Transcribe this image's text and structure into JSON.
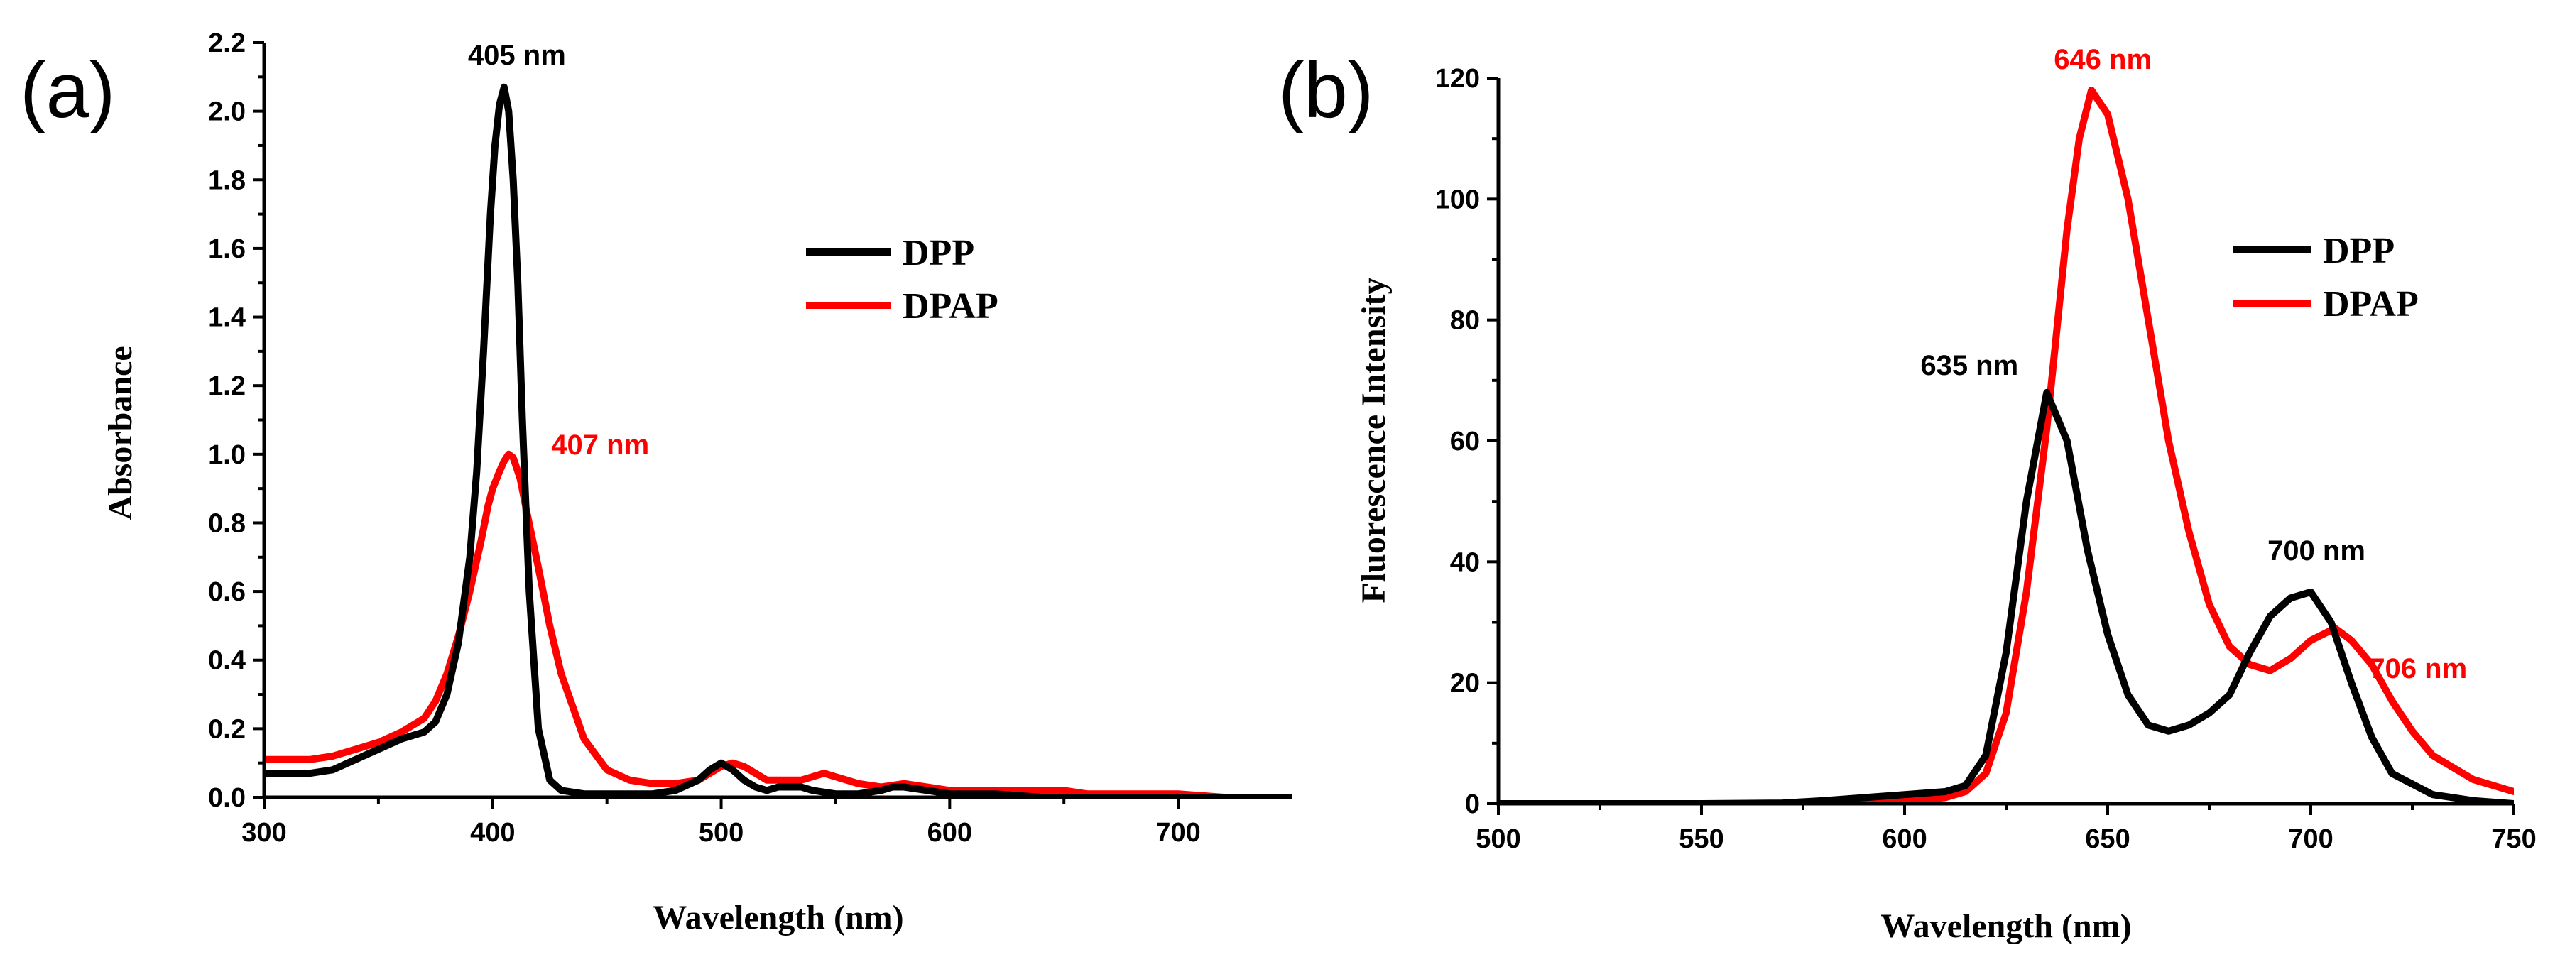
{
  "chart_data": [
    {
      "panel": "(a)",
      "type": "line",
      "xlabel": "Wavelength (nm)",
      "ylabel": "Absorbance",
      "xlim": [
        300,
        750
      ],
      "ylim": [
        0,
        2.2
      ],
      "xticks": [
        300,
        400,
        500,
        600,
        700
      ],
      "yticks": [
        0.0,
        0.2,
        0.4,
        0.6,
        0.8,
        1.0,
        1.2,
        1.4,
        1.6,
        1.8,
        2.0,
        2.2
      ],
      "ytick_labels": [
        "0.0",
        "0.2",
        "0.4",
        "0.6",
        "0.8",
        "1.0",
        "1.2",
        "1.4",
        "1.6",
        "1.8",
        "2.0",
        "2.2"
      ],
      "grid": false,
      "legend_position": "upper-right",
      "colors": {
        "DPP": "#000000",
        "DPAP": "#ff0000"
      },
      "series": [
        {
          "name": "DPAP",
          "x": [
            300,
            310,
            320,
            330,
            340,
            350,
            360,
            370,
            375,
            380,
            385,
            390,
            395,
            398,
            400,
            403,
            405,
            407,
            409,
            412,
            415,
            420,
            425,
            430,
            440,
            450,
            460,
            470,
            480,
            490,
            495,
            500,
            505,
            510,
            515,
            520,
            525,
            530,
            535,
            540,
            545,
            550,
            555,
            560,
            570,
            580,
            590,
            600,
            610,
            620,
            630,
            640,
            650,
            660,
            680,
            700,
            720,
            750
          ],
          "y": [
            0.11,
            0.11,
            0.11,
            0.12,
            0.14,
            0.16,
            0.19,
            0.23,
            0.28,
            0.36,
            0.47,
            0.6,
            0.75,
            0.85,
            0.9,
            0.95,
            0.98,
            1.0,
            0.99,
            0.93,
            0.83,
            0.67,
            0.5,
            0.36,
            0.17,
            0.08,
            0.05,
            0.04,
            0.04,
            0.05,
            0.07,
            0.09,
            0.1,
            0.09,
            0.07,
            0.05,
            0.05,
            0.05,
            0.05,
            0.06,
            0.07,
            0.06,
            0.05,
            0.04,
            0.03,
            0.04,
            0.03,
            0.02,
            0.02,
            0.02,
            0.02,
            0.02,
            0.02,
            0.01,
            0.01,
            0.01,
            0.0,
            0.0
          ]
        },
        {
          "name": "DPP",
          "x": [
            300,
            310,
            320,
            330,
            340,
            350,
            360,
            370,
            375,
            380,
            385,
            390,
            393,
            396,
            399,
            401,
            403,
            405,
            407,
            409,
            411,
            413,
            416,
            420,
            425,
            430,
            440,
            450,
            460,
            470,
            480,
            490,
            495,
            500,
            505,
            510,
            515,
            520,
            525,
            530,
            535,
            540,
            550,
            560,
            570,
            575,
            580,
            590,
            600,
            620,
            640,
            660,
            700,
            750
          ],
          "y": [
            0.07,
            0.07,
            0.07,
            0.08,
            0.11,
            0.14,
            0.17,
            0.19,
            0.22,
            0.3,
            0.45,
            0.7,
            0.95,
            1.3,
            1.7,
            1.9,
            2.02,
            2.07,
            2.0,
            1.8,
            1.5,
            1.1,
            0.6,
            0.2,
            0.05,
            0.02,
            0.01,
            0.01,
            0.01,
            0.01,
            0.02,
            0.05,
            0.08,
            0.1,
            0.08,
            0.05,
            0.03,
            0.02,
            0.03,
            0.03,
            0.03,
            0.02,
            0.01,
            0.01,
            0.02,
            0.03,
            0.03,
            0.02,
            0.01,
            0.01,
            0.0,
            0.0,
            0.0,
            0.0
          ]
        }
      ],
      "annotations": [
        {
          "text": "405 nm",
          "x": 405,
          "y": 2.07,
          "color": "#000000"
        },
        {
          "text": "407 nm",
          "x": 407,
          "y": 1.0,
          "color": "#ff0000"
        }
      ]
    },
    {
      "panel": "(b)",
      "type": "line",
      "xlabel": "Wavelength (nm)",
      "ylabel": "Fluorescence Intensity",
      "xlim": [
        500,
        750
      ],
      "ylim": [
        0,
        120
      ],
      "xticks": [
        500,
        550,
        600,
        650,
        700,
        750
      ],
      "yticks": [
        0,
        20,
        40,
        60,
        80,
        100,
        120
      ],
      "ytick_labels": [
        "0",
        "20",
        "40",
        "60",
        "80",
        "100",
        "120"
      ],
      "grid": false,
      "legend_position": "upper-right",
      "colors": {
        "DPP": "#000000",
        "DPAP": "#ff0000"
      },
      "series": [
        {
          "name": "DPAP",
          "x": [
            500,
            550,
            570,
            590,
            600,
            610,
            615,
            620,
            625,
            630,
            635,
            640,
            643,
            646,
            650,
            655,
            660,
            665,
            670,
            675,
            680,
            685,
            690,
            695,
            700,
            706,
            710,
            715,
            720,
            725,
            730,
            740,
            750
          ],
          "y": [
            0,
            0,
            0,
            0.3,
            0.5,
            1,
            2,
            5,
            15,
            35,
            62,
            95,
            110,
            118,
            114,
            100,
            80,
            60,
            45,
            33,
            26,
            23,
            22,
            24,
            27,
            29,
            27,
            23,
            17,
            12,
            8,
            4,
            2
          ]
        },
        {
          "name": "DPP",
          "x": [
            500,
            550,
            570,
            580,
            590,
            600,
            610,
            615,
            620,
            625,
            630,
            635,
            640,
            645,
            650,
            655,
            660,
            665,
            670,
            675,
            680,
            685,
            690,
            695,
            700,
            705,
            710,
            715,
            720,
            730,
            740,
            750
          ],
          "y": [
            0,
            0,
            0.1,
            0.5,
            1,
            1.5,
            2,
            3,
            8,
            25,
            50,
            68,
            60,
            42,
            28,
            18,
            13,
            12,
            13,
            15,
            18,
            25,
            31,
            34,
            35,
            30,
            20,
            11,
            5,
            1.5,
            0.5,
            0
          ]
        }
      ],
      "annotations": [
        {
          "text": "646 nm",
          "x": 646,
          "y": 118,
          "color": "#ff0000"
        },
        {
          "text": "635 nm",
          "x": 635,
          "y": 68,
          "color": "#000000"
        },
        {
          "text": "700 nm",
          "x": 700,
          "y": 35,
          "color": "#000000"
        },
        {
          "text": "706 nm",
          "x": 706,
          "y": 29,
          "color": "#ff0000"
        }
      ]
    }
  ]
}
